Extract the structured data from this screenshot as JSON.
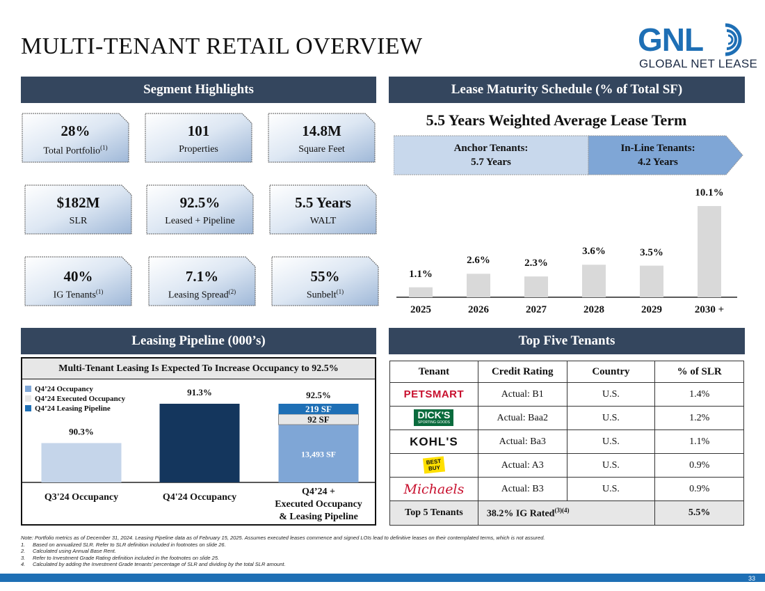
{
  "title": "MULTI-TENANT RETAIL OVERVIEW",
  "logo": {
    "name": "GNL",
    "subtitle": "GLOBAL NET LEASE",
    "brand_color": "#1e6fb5"
  },
  "segment": {
    "header": "Segment Highlights",
    "cards": [
      {
        "value": "28%",
        "label": "Total Portfolio",
        "sup": "(1)"
      },
      {
        "value": "101",
        "label": "Properties",
        "sup": ""
      },
      {
        "value": "14.8M",
        "label": "Square Feet",
        "sup": ""
      },
      {
        "value": "$182M",
        "label": "SLR",
        "sup": ""
      },
      {
        "value": "92.5%",
        "label": "Leased + Pipeline",
        "sup": ""
      },
      {
        "value": "5.5 Years",
        "label": "WALT",
        "sup": ""
      },
      {
        "value": "40%",
        "label": "IG Tenants",
        "sup": "(1)"
      },
      {
        "value": "7.1%",
        "label": "Leasing Spread",
        "sup": "(2)"
      },
      {
        "value": "55%",
        "label": "Sunbelt",
        "sup": "(1)"
      }
    ]
  },
  "lease": {
    "header": "Lease Maturity Schedule (% of Total SF)",
    "walt_title": "5.5 Years Weighted Average Lease Term",
    "anchor_label": "Anchor Tenants:",
    "anchor_value": "5.7 Years",
    "inline_label": "In-Line Tenants:",
    "inline_value": "4.2 Years"
  },
  "pipeline": {
    "header": "Leasing Pipeline (000’s)",
    "subtitle": "Multi-Tenant Leasing Is Expected To Increase Occupancy to 92.5%",
    "legend": [
      "Q4’24 Occupancy",
      "Q4’24 Executed Occupancy",
      "Q4’24 Leasing Pipeline"
    ],
    "label_leasing_pipeline_sf": "219 SF",
    "label_executed_sf": "92 SF",
    "label_occupancy_sf": "13,493 SF",
    "total_label": "92.5%",
    "category_1_line1": "Q4’24 +",
    "category_1_line2": "Executed Occupancy",
    "category_1_line3": "& Leasing Pipeline"
  },
  "top_tenants": {
    "header": "Top Five Tenants",
    "columns": [
      "Tenant",
      "Credit Rating",
      "Country",
      "% of SLR"
    ],
    "rows": [
      {
        "logo_text": "PETSMART",
        "rating": "Actual: B1",
        "country": "U.S.",
        "slr": "1.4%"
      },
      {
        "logo_text": "DICK'S",
        "logo_sub": "SPORTING GOODS",
        "rating": "Actual: Baa2",
        "country": "U.S.",
        "slr": "1.2%"
      },
      {
        "logo_text": "KOHL'S",
        "rating": "Actual: Ba3",
        "country": "U.S.",
        "slr": "1.1%"
      },
      {
        "logo_text": "BEST BUY",
        "rating": "Actual: A3",
        "country": "U.S.",
        "slr": "0.9%"
      },
      {
        "logo_text": "Michaels",
        "rating": "Actual: B3",
        "country": "U.S.",
        "slr": "0.9%"
      }
    ],
    "total_label": "Top 5 Tenants",
    "total_ig": "38.2% IG Rated",
    "total_ig_sup": "(3)(4)",
    "total_slr": "5.5%"
  },
  "chart_data": [
    {
      "type": "bar",
      "categories": [
        "2025",
        "2026",
        "2027",
        "2028",
        "2029",
        "2030 +"
      ],
      "values": [
        1.1,
        2.6,
        2.3,
        3.6,
        3.5,
        10.1
      ],
      "data_labels": [
        "1.1%",
        "2.6%",
        "2.3%",
        "3.6%",
        "3.5%",
        "10.1%"
      ],
      "ylim": [
        0,
        10.1
      ],
      "color": "#d9d9d9"
    },
    {
      "type": "bar",
      "categories": [
        "Q3'24 Occupancy",
        "Q4'24 Occupancy",
        "Q4’24 + Executed Occupancy & Leasing Pipeline"
      ],
      "series": [
        {
          "name": "Q4’24 Occupancy",
          "values": [
            90.3,
            91.3,
            91.3
          ],
          "color_by_category": [
            "#c5d5ea",
            "#14365d",
            "#7fa6d6"
          ]
        },
        {
          "name": "Q4’24 Executed Occupancy",
          "values": [
            0,
            0,
            92
          ],
          "unit": "000s SF",
          "color": "#e7e7e7"
        },
        {
          "name": "Q4’24 Leasing Pipeline",
          "values": [
            0,
            0,
            219
          ],
          "unit": "000s SF",
          "color": "#1e6fb5"
        }
      ],
      "data_labels": [
        "90.3%",
        "91.3%",
        "92.5%"
      ],
      "stack_component_sf": [
        "13,493 SF",
        "92 SF",
        "219 SF"
      ]
    }
  ],
  "notes": {
    "main": "Note: Portfolio metrics as of December 31, 2024. Leasing Pipeline data as of February 15, 2025. Assumes executed leases commence and signed LOIs lead to definitive leases on their contemplated terms, which is not assured.",
    "items": [
      {
        "num": "1.",
        "text": "Based on annualized SLR. Refer to SLR definition included in footnotes on slide 26."
      },
      {
        "num": "2.",
        "text": "Calculated using Annual Base Rent."
      },
      {
        "num": "3.",
        "text": "Refer to Investment Grade Rating definition included in the footnotes on slide 25."
      },
      {
        "num": "4.",
        "text": "Calculated by adding the Investment Grade tenants’ percentage of SLR and dividing by the total SLR amount."
      }
    ]
  },
  "page_number": "33"
}
